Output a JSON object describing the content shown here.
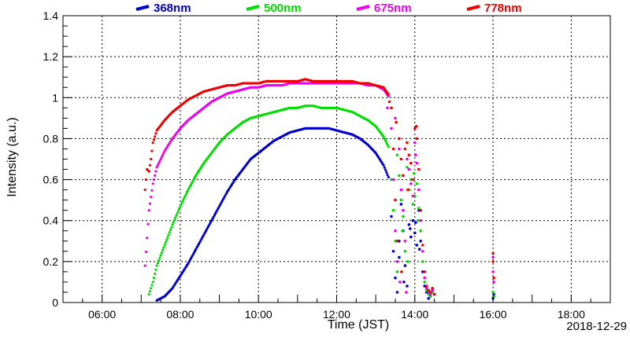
{
  "chart_data": {
    "type": "scatter",
    "xlabel": "Time (JST)",
    "ylabel": "Intensity (a.u.)",
    "date": "2018-12-29",
    "xlim": [
      5.0,
      19.0
    ],
    "ylim": [
      0,
      1.4
    ],
    "x_ticks": [
      6,
      8,
      10,
      12,
      14,
      16,
      18
    ],
    "x_tick_labels": [
      "06:00",
      "08:00",
      "10:00",
      "12:00",
      "14:00",
      "16:00",
      "18:00"
    ],
    "y_ticks": [
      0,
      0.2,
      0.4,
      0.6,
      0.8,
      1.0,
      1.2,
      1.4
    ],
    "y_tick_labels": [
      "0",
      "0.2",
      "0.4",
      "0.6",
      "0.8",
      "1",
      "1.2",
      "1.4"
    ],
    "grid": true,
    "legend_position": "top",
    "series": [
      {
        "name": "368nm",
        "color": "#0000cc",
        "curve": [
          [
            7.4,
            0.01
          ],
          [
            7.6,
            0.03
          ],
          [
            7.8,
            0.07
          ],
          [
            8.0,
            0.13
          ],
          [
            8.2,
            0.19
          ],
          [
            8.4,
            0.26
          ],
          [
            8.6,
            0.33
          ],
          [
            8.8,
            0.4
          ],
          [
            9.0,
            0.47
          ],
          [
            9.2,
            0.54
          ],
          [
            9.4,
            0.6
          ],
          [
            9.6,
            0.65
          ],
          [
            9.8,
            0.7
          ],
          [
            10.0,
            0.73
          ],
          [
            10.2,
            0.76
          ],
          [
            10.4,
            0.79
          ],
          [
            10.6,
            0.81
          ],
          [
            10.8,
            0.83
          ],
          [
            11.0,
            0.84
          ],
          [
            11.2,
            0.85
          ],
          [
            11.4,
            0.85
          ],
          [
            11.6,
            0.85
          ],
          [
            11.8,
            0.85
          ],
          [
            12.0,
            0.84
          ],
          [
            12.2,
            0.83
          ],
          [
            12.4,
            0.82
          ],
          [
            12.6,
            0.8
          ],
          [
            12.8,
            0.77
          ],
          [
            13.0,
            0.73
          ],
          [
            13.2,
            0.67
          ],
          [
            13.35,
            0.6
          ]
        ],
        "scatter": [
          [
            13.4,
            0.42
          ],
          [
            13.45,
            0.25
          ],
          [
            13.5,
            0.12
          ],
          [
            13.55,
            0.05
          ],
          [
            13.6,
            0.3
          ],
          [
            13.65,
            0.48
          ],
          [
            13.7,
            0.35
          ],
          [
            13.75,
            0.18
          ],
          [
            13.8,
            0.08
          ],
          [
            13.85,
            0.38
          ],
          [
            13.9,
            0.32
          ],
          [
            13.95,
            0.4
          ],
          [
            14.0,
            0.34
          ],
          [
            14.05,
            0.28
          ],
          [
            14.1,
            0.45
          ],
          [
            14.15,
            0.3
          ],
          [
            14.2,
            0.15
          ],
          [
            14.25,
            0.08
          ],
          [
            14.3,
            0.05
          ],
          [
            14.35,
            0.02
          ],
          [
            14.4,
            0.03
          ],
          [
            14.45,
            0.06
          ],
          [
            14.5,
            0.04
          ],
          [
            13.6,
            0.22
          ],
          [
            13.72,
            0.1
          ],
          [
            13.88,
            0.36
          ],
          [
            14.02,
            0.39
          ],
          [
            14.12,
            0.26
          ],
          [
            16.0,
            0.02
          ],
          [
            16.02,
            0.04
          ]
        ]
      },
      {
        "name": "500nm",
        "color": "#00dd00",
        "curve": [
          [
            7.2,
            0.04
          ],
          [
            7.3,
            0.1
          ],
          [
            7.4,
            0.18
          ],
          [
            7.6,
            0.28
          ],
          [
            7.8,
            0.38
          ],
          [
            8.0,
            0.47
          ],
          [
            8.2,
            0.55
          ],
          [
            8.4,
            0.62
          ],
          [
            8.6,
            0.68
          ],
          [
            8.8,
            0.73
          ],
          [
            9.0,
            0.78
          ],
          [
            9.2,
            0.82
          ],
          [
            9.4,
            0.85
          ],
          [
            9.6,
            0.88
          ],
          [
            9.8,
            0.9
          ],
          [
            10.0,
            0.91
          ],
          [
            10.2,
            0.92
          ],
          [
            10.4,
            0.93
          ],
          [
            10.6,
            0.94
          ],
          [
            10.8,
            0.95
          ],
          [
            11.0,
            0.95
          ],
          [
            11.2,
            0.96
          ],
          [
            11.4,
            0.96
          ],
          [
            11.6,
            0.95
          ],
          [
            11.8,
            0.95
          ],
          [
            12.0,
            0.95
          ],
          [
            12.2,
            0.94
          ],
          [
            12.4,
            0.93
          ],
          [
            12.6,
            0.91
          ],
          [
            12.8,
            0.89
          ],
          [
            13.0,
            0.86
          ],
          [
            13.2,
            0.81
          ],
          [
            13.35,
            0.75
          ]
        ],
        "scatter": [
          [
            13.4,
            0.6
          ],
          [
            13.45,
            0.45
          ],
          [
            13.5,
            0.3
          ],
          [
            13.55,
            0.15
          ],
          [
            13.6,
            0.62
          ],
          [
            13.65,
            0.5
          ],
          [
            13.7,
            0.42
          ],
          [
            13.75,
            0.25
          ],
          [
            13.8,
            0.66
          ],
          [
            13.85,
            0.55
          ],
          [
            13.9,
            0.6
          ],
          [
            13.95,
            0.48
          ],
          [
            14.0,
            0.52
          ],
          [
            14.05,
            0.58
          ],
          [
            14.1,
            0.46
          ],
          [
            14.15,
            0.35
          ],
          [
            14.2,
            0.2
          ],
          [
            14.25,
            0.1
          ],
          [
            14.3,
            0.06
          ],
          [
            14.35,
            0.04
          ],
          [
            14.4,
            0.03
          ],
          [
            14.45,
            0.05
          ],
          [
            13.55,
            0.72
          ],
          [
            13.68,
            0.35
          ],
          [
            13.82,
            0.2
          ],
          [
            13.98,
            0.63
          ],
          [
            14.08,
            0.4
          ],
          [
            16.0,
            0.05
          ],
          [
            16.02,
            0.03
          ]
        ]
      },
      {
        "name": "675nm",
        "color": "#ee00ee",
        "curve": [
          [
            7.1,
            0.18
          ],
          [
            7.2,
            0.45
          ],
          [
            7.3,
            0.58
          ],
          [
            7.4,
            0.66
          ],
          [
            7.6,
            0.74
          ],
          [
            7.8,
            0.8
          ],
          [
            8.0,
            0.85
          ],
          [
            8.2,
            0.89
          ],
          [
            8.4,
            0.92
          ],
          [
            8.6,
            0.95
          ],
          [
            8.8,
            0.98
          ],
          [
            9.0,
            1.0
          ],
          [
            9.2,
            1.02
          ],
          [
            9.4,
            1.03
          ],
          [
            9.6,
            1.04
          ],
          [
            9.8,
            1.05
          ],
          [
            10.0,
            1.05
          ],
          [
            10.2,
            1.06
          ],
          [
            10.4,
            1.06
          ],
          [
            10.6,
            1.06
          ],
          [
            10.8,
            1.07
          ],
          [
            11.0,
            1.07
          ],
          [
            11.2,
            1.07
          ],
          [
            11.4,
            1.07
          ],
          [
            11.6,
            1.07
          ],
          [
            11.8,
            1.07
          ],
          [
            12.0,
            1.07
          ],
          [
            12.2,
            1.07
          ],
          [
            12.4,
            1.07
          ],
          [
            12.6,
            1.07
          ],
          [
            12.8,
            1.06
          ],
          [
            13.0,
            1.06
          ],
          [
            13.2,
            1.04
          ],
          [
            13.35,
            1.0
          ]
        ],
        "scatter": [
          [
            13.4,
            0.85
          ],
          [
            13.45,
            0.6
          ],
          [
            13.5,
            0.35
          ],
          [
            13.55,
            0.2
          ],
          [
            13.6,
            0.75
          ],
          [
            13.65,
            0.55
          ],
          [
            13.7,
            0.45
          ],
          [
            13.75,
            0.3
          ],
          [
            13.8,
            0.7
          ],
          [
            13.85,
            0.65
          ],
          [
            13.9,
            0.58
          ],
          [
            13.95,
            0.52
          ],
          [
            14.0,
            0.78
          ],
          [
            14.05,
            0.68
          ],
          [
            14.1,
            0.55
          ],
          [
            14.15,
            0.4
          ],
          [
            14.2,
            0.25
          ],
          [
            14.25,
            0.12
          ],
          [
            14.3,
            0.07
          ],
          [
            14.35,
            0.05
          ],
          [
            14.4,
            0.04
          ],
          [
            14.45,
            0.06
          ],
          [
            13.3,
            0.95
          ],
          [
            13.5,
            0.9
          ],
          [
            13.62,
            0.1
          ],
          [
            13.78,
            0.05
          ],
          [
            14.02,
            0.72
          ],
          [
            16.0,
            0.15
          ],
          [
            16.0,
            0.22
          ],
          [
            16.02,
            0.1
          ]
        ]
      },
      {
        "name": "778nm",
        "color": "#ee0000",
        "curve": [
          [
            7.1,
            0.55
          ],
          [
            7.15,
            0.65
          ],
          [
            7.2,
            0.64
          ],
          [
            7.25,
            0.7
          ],
          [
            7.3,
            0.78
          ],
          [
            7.4,
            0.84
          ],
          [
            7.6,
            0.89
          ],
          [
            7.8,
            0.93
          ],
          [
            8.0,
            0.96
          ],
          [
            8.2,
            0.99
          ],
          [
            8.4,
            1.01
          ],
          [
            8.6,
            1.03
          ],
          [
            8.8,
            1.04
          ],
          [
            9.0,
            1.05
          ],
          [
            9.2,
            1.06
          ],
          [
            9.4,
            1.06
          ],
          [
            9.6,
            1.07
          ],
          [
            9.8,
            1.07
          ],
          [
            10.0,
            1.07
          ],
          [
            10.2,
            1.08
          ],
          [
            10.4,
            1.08
          ],
          [
            10.6,
            1.08
          ],
          [
            10.8,
            1.08
          ],
          [
            11.0,
            1.08
          ],
          [
            11.2,
            1.09
          ],
          [
            11.4,
            1.08
          ],
          [
            11.6,
            1.08
          ],
          [
            11.8,
            1.08
          ],
          [
            12.0,
            1.08
          ],
          [
            12.2,
            1.08
          ],
          [
            12.4,
            1.08
          ],
          [
            12.6,
            1.07
          ],
          [
            12.8,
            1.07
          ],
          [
            13.0,
            1.06
          ],
          [
            13.2,
            1.05
          ],
          [
            13.35,
            1.01
          ]
        ],
        "scatter": [
          [
            13.4,
            0.95
          ],
          [
            13.45,
            0.75
          ],
          [
            13.5,
            0.5
          ],
          [
            13.55,
            0.3
          ],
          [
            13.6,
            0.8
          ],
          [
            13.65,
            0.7
          ],
          [
            13.7,
            0.62
          ],
          [
            13.75,
            0.75
          ],
          [
            13.8,
            0.78
          ],
          [
            13.85,
            0.72
          ],
          [
            13.9,
            0.68
          ],
          [
            13.95,
            0.6
          ],
          [
            14.0,
            0.85
          ],
          [
            14.05,
            0.8
          ],
          [
            14.1,
            0.65
          ],
          [
            14.15,
            0.45
          ],
          [
            14.2,
            0.28
          ],
          [
            14.25,
            0.15
          ],
          [
            14.3,
            0.08
          ],
          [
            14.35,
            0.06
          ],
          [
            14.4,
            0.05
          ],
          [
            14.45,
            0.07
          ],
          [
            14.5,
            0.04
          ],
          [
            13.35,
            0.98
          ],
          [
            13.52,
            0.88
          ],
          [
            13.66,
            0.15
          ],
          [
            13.82,
            0.55
          ],
          [
            14.04,
            0.86
          ],
          [
            16.0,
            0.2
          ],
          [
            16.0,
            0.24
          ],
          [
            16.02,
            0.12
          ]
        ]
      }
    ]
  }
}
